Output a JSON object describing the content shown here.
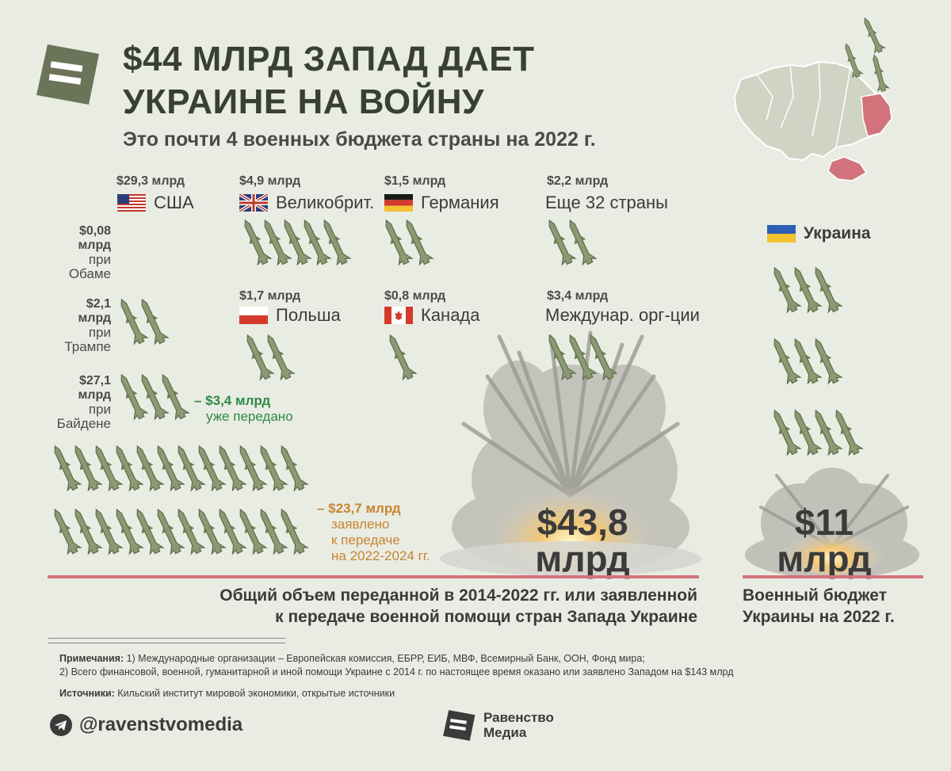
{
  "title": {
    "line1": "$44 МЛРД ЗАПАД ДАЕТ",
    "line2": "УКРАИНЕ НА ВОЙНУ"
  },
  "subtitle": "Это почти 4 военных бюджета страны на 2022 г.",
  "donors": [
    {
      "amount": "$29,3 млрд",
      "country": "США",
      "flag": "us-flag-icon"
    },
    {
      "amount": "$4,9 млрд",
      "country": "Великобрит.",
      "flag": "uk-flag-icon"
    },
    {
      "amount": "$1,5 млрд",
      "country": "Германия",
      "flag": "de-flag-icon"
    },
    {
      "amount": "$2,2 млрд",
      "country": "Еще 32 страны",
      "flag": ""
    },
    {
      "amount": "$1,7 млрд",
      "country": "Польша",
      "flag": "pl-flag-icon"
    },
    {
      "amount": "$0,8 млрд",
      "country": "Канада",
      "flag": "ca-flag-icon"
    },
    {
      "amount": "$3,4 млрд",
      "country": "Междунар. орг-ции",
      "flag": ""
    }
  ],
  "presidents": [
    {
      "amount": "$0,08",
      "unit": "млрд",
      "pre": "при",
      "name": "Обаме"
    },
    {
      "amount": "$2,1",
      "unit": "млрд",
      "pre": "при",
      "name": "Трампе"
    },
    {
      "amount": "$27,1",
      "unit": "млрд",
      "pre": "при",
      "name": "Байдене"
    }
  ],
  "delivered": {
    "amount": "– $3,4 млрд",
    "text": "уже передано"
  },
  "pledged": {
    "amount": "– $23,7 млрд",
    "text1": "заявлено",
    "text2": "к передаче",
    "text3": "на 2022-2024 гг."
  },
  "ukraine": {
    "label": "Украина"
  },
  "total": {
    "value": "$43,8",
    "unit": "млрд"
  },
  "budget": {
    "value": "$11",
    "unit": "млрд"
  },
  "caption_left": {
    "line1": "Общий объем переданной в 2014-2022 гг. или заявленной",
    "line2": "к передаче военной помощи стран Запада Украине"
  },
  "caption_right": {
    "line1": "Военный бюджет",
    "line2": "Украины на 2022 г."
  },
  "notes": {
    "label1": "Примечания:",
    "text1": " 1) Международные организации – Европейская комиссия, ЕБРР, ЕИБ, МВФ, Всемирный Банк, ООН, Фонд мира;",
    "text2": "2) Всего финансовой, военной, гуманитарной и иной помощи Украине с 2014 г. по настоящее время оказано или заявлено Западом на $143 млрд",
    "label2": "Источники:",
    "text3": " Кильский институт мировой экономики, открытые источники"
  },
  "footer": {
    "handle": "@ravenstvomedia",
    "brand1": "Равенство",
    "brand2": "Медиа"
  },
  "colors": {
    "missile": "#8b9a72",
    "missile_dark": "#5c6a4a",
    "accent_red": "#d2737b",
    "green": "#2e8a44",
    "orange": "#c88430",
    "logo": "#6b7358"
  }
}
